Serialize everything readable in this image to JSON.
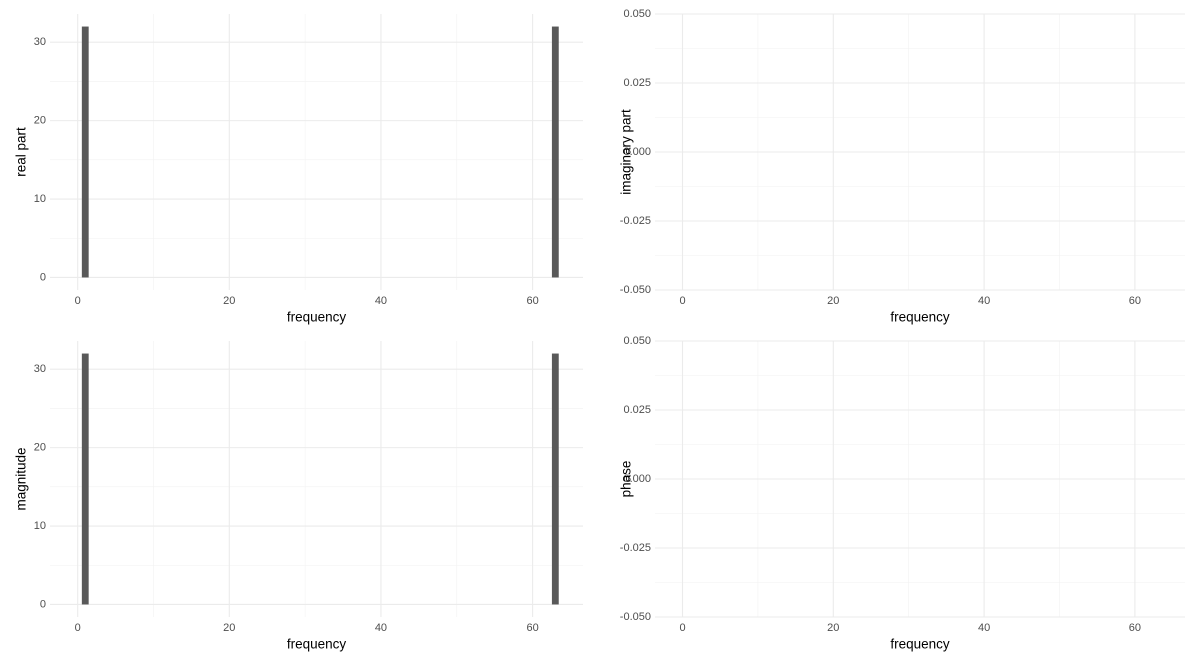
{
  "chart_data": [
    {
      "type": "bar",
      "x_label": "frequency",
      "y_label": "real part",
      "x": [
        0,
        1,
        2,
        3,
        4,
        5,
        6,
        7,
        8,
        9,
        10,
        11,
        12,
        13,
        14,
        15,
        16,
        17,
        18,
        19,
        20,
        21,
        22,
        23,
        24,
        25,
        26,
        27,
        28,
        29,
        30,
        31,
        32,
        33,
        34,
        35,
        36,
        37,
        38,
        39,
        40,
        41,
        42,
        43,
        44,
        45,
        46,
        47,
        48,
        49,
        50,
        51,
        52,
        53,
        54,
        55,
        56,
        57,
        58,
        59,
        60,
        61,
        62,
        63
      ],
      "values": [
        0,
        32,
        0,
        0,
        0,
        0,
        0,
        0,
        0,
        0,
        0,
        0,
        0,
        0,
        0,
        0,
        0,
        0,
        0,
        0,
        0,
        0,
        0,
        0,
        0,
        0,
        0,
        0,
        0,
        0,
        0,
        0,
        0,
        0,
        0,
        0,
        0,
        0,
        0,
        0,
        0,
        0,
        0,
        0,
        0,
        0,
        0,
        0,
        0,
        0,
        0,
        0,
        0,
        0,
        0,
        0,
        0,
        0,
        0,
        0,
        0,
        0,
        0,
        32
      ],
      "color": "#595959",
      "xlim": [
        -3.65,
        66.65
      ],
      "xticks": [
        0,
        20,
        40,
        60
      ],
      "ylim": [
        -1.6,
        33.6
      ],
      "yticks": [
        0,
        10,
        20,
        30
      ],
      "grid": true
    },
    {
      "type": "bar",
      "x_label": "frequency",
      "y_label": "imaginary part",
      "x": [
        0,
        1,
        2,
        3,
        4,
        5,
        6,
        7,
        8,
        9,
        10,
        11,
        12,
        13,
        14,
        15,
        16,
        17,
        18,
        19,
        20,
        21,
        22,
        23,
        24,
        25,
        26,
        27,
        28,
        29,
        30,
        31,
        32,
        33,
        34,
        35,
        36,
        37,
        38,
        39,
        40,
        41,
        42,
        43,
        44,
        45,
        46,
        47,
        48,
        49,
        50,
        51,
        52,
        53,
        54,
        55,
        56,
        57,
        58,
        59,
        60,
        61,
        62,
        63
      ],
      "values": [
        0,
        0,
        0,
        0,
        0,
        0,
        0,
        0,
        0,
        0,
        0,
        0,
        0,
        0,
        0,
        0,
        0,
        0,
        0,
        0,
        0,
        0,
        0,
        0,
        0,
        0,
        0,
        0,
        0,
        0,
        0,
        0,
        0,
        0,
        0,
        0,
        0,
        0,
        0,
        0,
        0,
        0,
        0,
        0,
        0,
        0,
        0,
        0,
        0,
        0,
        0,
        0,
        0,
        0,
        0,
        0,
        0,
        0,
        0,
        0,
        0,
        0,
        0,
        0
      ],
      "color": "#595959",
      "xlim": [
        -3.65,
        66.65
      ],
      "xticks": [
        0,
        20,
        40,
        60
      ],
      "ylim": [
        -0.05,
        0.05
      ],
      "yticks": [
        {
          "value": -0.05,
          "label": "-0.050"
        },
        {
          "value": -0.025,
          "label": "-0.025"
        },
        {
          "value": 0,
          "label": "0.000"
        },
        {
          "value": 0.025,
          "label": "0.025"
        },
        {
          "value": 0.05,
          "label": "0.050"
        }
      ],
      "grid": true
    },
    {
      "type": "bar",
      "x_label": "frequency",
      "y_label": "magnitude",
      "x": [
        0,
        1,
        2,
        3,
        4,
        5,
        6,
        7,
        8,
        9,
        10,
        11,
        12,
        13,
        14,
        15,
        16,
        17,
        18,
        19,
        20,
        21,
        22,
        23,
        24,
        25,
        26,
        27,
        28,
        29,
        30,
        31,
        32,
        33,
        34,
        35,
        36,
        37,
        38,
        39,
        40,
        41,
        42,
        43,
        44,
        45,
        46,
        47,
        48,
        49,
        50,
        51,
        52,
        53,
        54,
        55,
        56,
        57,
        58,
        59,
        60,
        61,
        62,
        63
      ],
      "values": [
        0,
        32,
        0,
        0,
        0,
        0,
        0,
        0,
        0,
        0,
        0,
        0,
        0,
        0,
        0,
        0,
        0,
        0,
        0,
        0,
        0,
        0,
        0,
        0,
        0,
        0,
        0,
        0,
        0,
        0,
        0,
        0,
        0,
        0,
        0,
        0,
        0,
        0,
        0,
        0,
        0,
        0,
        0,
        0,
        0,
        0,
        0,
        0,
        0,
        0,
        0,
        0,
        0,
        0,
        0,
        0,
        0,
        0,
        0,
        0,
        0,
        0,
        0,
        32
      ],
      "color": "#595959",
      "xlim": [
        -3.65,
        66.65
      ],
      "xticks": [
        0,
        20,
        40,
        60
      ],
      "ylim": [
        -1.6,
        33.6
      ],
      "yticks": [
        0,
        10,
        20,
        30
      ],
      "grid": true
    },
    {
      "type": "bar",
      "x_label": "frequency",
      "y_label": "phase",
      "x": [
        0,
        1,
        2,
        3,
        4,
        5,
        6,
        7,
        8,
        9,
        10,
        11,
        12,
        13,
        14,
        15,
        16,
        17,
        18,
        19,
        20,
        21,
        22,
        23,
        24,
        25,
        26,
        27,
        28,
        29,
        30,
        31,
        32,
        33,
        34,
        35,
        36,
        37,
        38,
        39,
        40,
        41,
        42,
        43,
        44,
        45,
        46,
        47,
        48,
        49,
        50,
        51,
        52,
        53,
        54,
        55,
        56,
        57,
        58,
        59,
        60,
        61,
        62,
        63
      ],
      "values": [
        0,
        0,
        0,
        0,
        0,
        0,
        0,
        0,
        0,
        0,
        0,
        0,
        0,
        0,
        0,
        0,
        0,
        0,
        0,
        0,
        0,
        0,
        0,
        0,
        0,
        0,
        0,
        0,
        0,
        0,
        0,
        0,
        0,
        0,
        0,
        0,
        0,
        0,
        0,
        0,
        0,
        0,
        0,
        0,
        0,
        0,
        0,
        0,
        0,
        0,
        0,
        0,
        0,
        0,
        0,
        0,
        0,
        0,
        0,
        0,
        0,
        0,
        0,
        0
      ],
      "color": "#595959",
      "xlim": [
        -3.65,
        66.65
      ],
      "xticks": [
        0,
        20,
        40,
        60
      ],
      "ylim": [
        -0.05,
        0.05
      ],
      "yticks": [
        {
          "value": -0.05,
          "label": "-0.050"
        },
        {
          "value": -0.025,
          "label": "-0.025"
        },
        {
          "value": 0,
          "label": "0.000"
        },
        {
          "value": 0.025,
          "label": "0.025"
        },
        {
          "value": 0.05,
          "label": "0.050"
        }
      ],
      "grid": true
    }
  ]
}
